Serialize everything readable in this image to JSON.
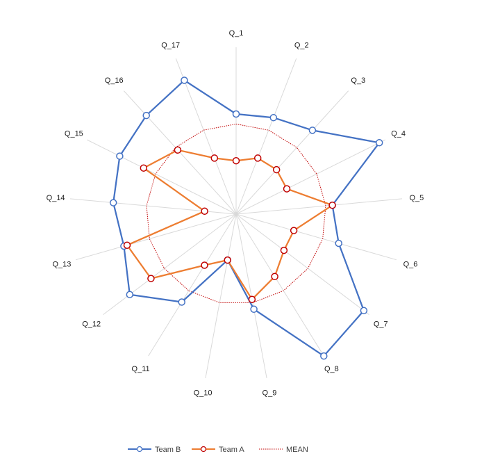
{
  "chart_data": {
    "type": "radar",
    "categories": [
      "Q_1",
      "Q_2",
      "Q_3",
      "Q_4",
      "Q_5",
      "Q_6",
      "Q_7",
      "Q_8",
      "Q_9",
      "Q_10",
      "Q_11",
      "Q_12",
      "Q_13",
      "Q_14",
      "Q_15",
      "Q_16",
      "Q_17"
    ],
    "rlim": [
      0,
      5
    ],
    "grid": true,
    "legend": "bottom",
    "series": [
      {
        "name": "Team B",
        "color": "#4472C4",
        "marker": "circle",
        "values": [
          3.0,
          3.1,
          3.4,
          4.8,
          2.9,
          3.2,
          4.8,
          5.0,
          2.9,
          1.4,
          3.1,
          4.0,
          3.5,
          3.7,
          3.9,
          4.0,
          4.3
        ]
      },
      {
        "name": "Team A",
        "color": "#ED7D31",
        "marker": "circle",
        "values": [
          1.6,
          1.8,
          1.8,
          1.7,
          2.9,
          1.8,
          1.8,
          2.2,
          2.6,
          1.4,
          1.8,
          3.2,
          3.4,
          0.95,
          3.1,
          2.6,
          1.8
        ]
      },
      {
        "name": "MEAN",
        "color": "#C00000",
        "style": "dotted",
        "values": [
          2.7,
          2.7,
          2.7,
          2.7,
          2.7,
          2.7,
          2.7,
          2.7,
          2.7,
          2.7,
          2.7,
          2.7,
          2.7,
          2.7,
          2.7,
          2.7,
          2.7
        ]
      }
    ]
  }
}
